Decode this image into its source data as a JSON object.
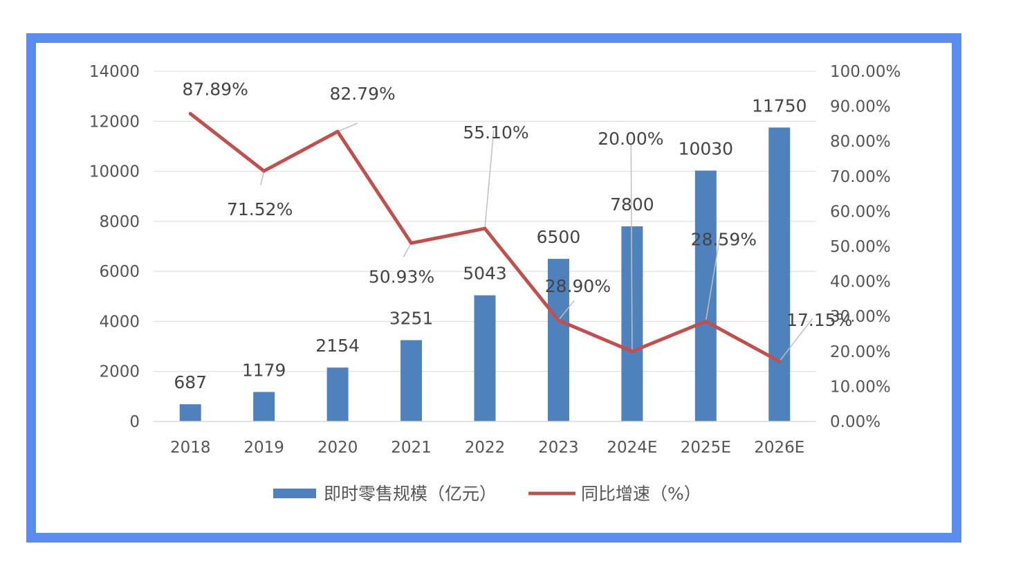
{
  "chart_data": {
    "type": "bar",
    "categories": [
      "2018",
      "2019",
      "2020",
      "2021",
      "2022",
      "2023",
      "2024E",
      "2025E",
      "2026E"
    ],
    "series": [
      {
        "name": "即时零售规模（亿元）",
        "type": "bar",
        "axis": "left",
        "color": "#4f81bd",
        "values": [
          687,
          1179,
          2154,
          3251,
          5043,
          6500,
          7800,
          10030,
          11750
        ],
        "labels": [
          "687",
          "1179",
          "2154",
          "3251",
          "5043",
          "6500",
          "7800",
          "10030",
          "11750"
        ]
      },
      {
        "name": "同比增速（%）",
        "type": "line",
        "axis": "right",
        "color": "#c0504d",
        "values": [
          87.89,
          71.52,
          82.79,
          50.93,
          55.1,
          28.9,
          20.0,
          28.59,
          17.15
        ],
        "labels": [
          "87.89%",
          "71.52%",
          "82.79%",
          "50.93%",
          "55.10%",
          "28.90%",
          "20.00%",
          "28.59%",
          "17.15%"
        ]
      }
    ],
    "y_left": {
      "range": [
        0,
        14000
      ],
      "ticks": [
        "0",
        "2000",
        "4000",
        "6000",
        "8000",
        "10000",
        "12000",
        "14000"
      ]
    },
    "y_right": {
      "range": [
        0,
        100
      ],
      "ticks": [
        "0.00%",
        "10.00%",
        "20.00%",
        "30.00%",
        "40.00%",
        "50.00%",
        "60.00%",
        "70.00%",
        "80.00%",
        "90.00%",
        "100.00%"
      ]
    },
    "grid": true,
    "legend": "bottom",
    "title": "",
    "xlabel": "",
    "ylabel": ""
  }
}
